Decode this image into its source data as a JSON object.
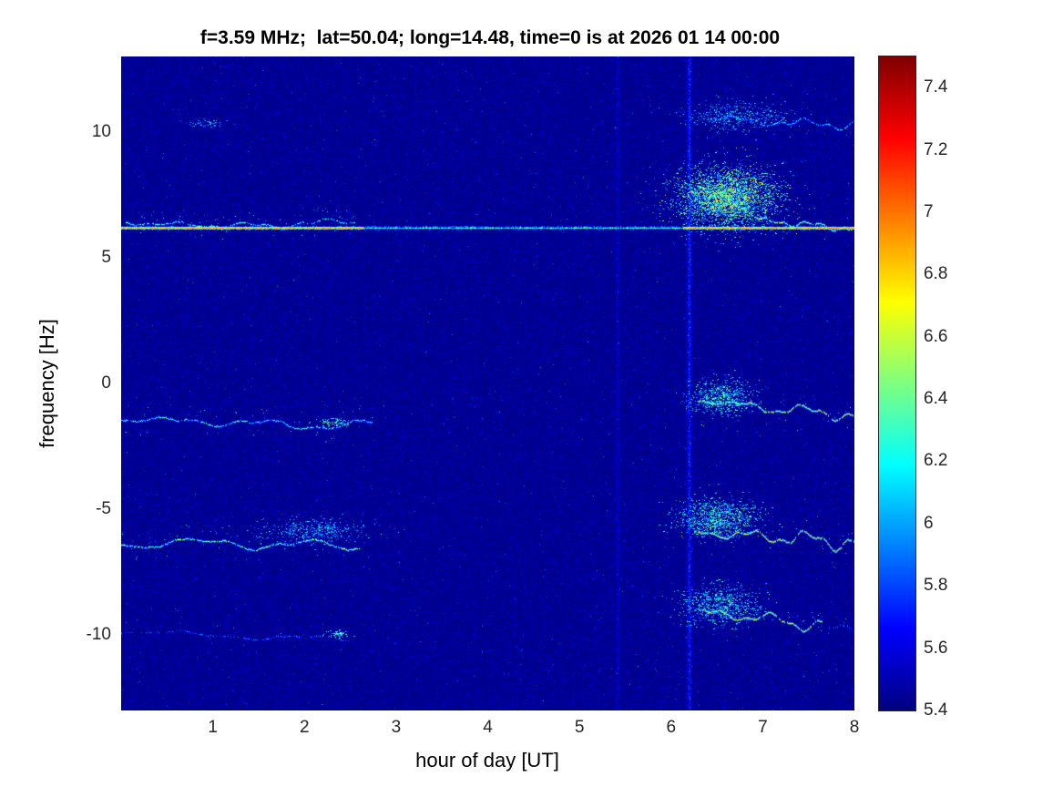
{
  "chart_data": {
    "type": "heatmap",
    "title": "f=3.59 MHz;  lat=50.04; long=14.48, time=0 is at 2026 01 14 00:00",
    "xlabel": "hour of day [UT]",
    "ylabel": "frequency [Hz]",
    "xlim": [
      0,
      8
    ],
    "ylim": [
      -13,
      13
    ],
    "x_ticks": [
      1,
      2,
      3,
      4,
      5,
      6,
      7,
      8
    ],
    "y_ticks": [
      -10,
      -5,
      0,
      5,
      10
    ],
    "grid": false,
    "legend": "none",
    "colorbar": {
      "position": "right",
      "colormap": "jet",
      "min": 5.4,
      "max": 7.5,
      "ticks": [
        5.4,
        5.6,
        5.8,
        6,
        6.2,
        6.4,
        6.6,
        6.8,
        7,
        7.2,
        7.4
      ]
    },
    "noise": {
      "base": 5.4,
      "scale": 0.045,
      "speckle_p": 0.0035,
      "speckle_amp": 0.5
    },
    "vertical_bands": [
      {
        "hour": 6.2,
        "width": 0.022,
        "strength": 0.45
      },
      {
        "hour": 5.42,
        "width": 0.018,
        "strength": 0.18
      }
    ],
    "carrier_line": {
      "frequency_hz": 6.2,
      "active_intervals_hours": [
        [
          0,
          2.65
        ],
        [
          6.13,
          8
        ]
      ],
      "value_active": [
        6.45,
        7.15
      ],
      "value_quiet": [
        6.0,
        6.5
      ]
    },
    "traces": [
      {
        "x0": 0.05,
        "x1": 2.55,
        "y0": 6.45,
        "y1": 6.5,
        "a0": 0.1,
        "a1": 0.18,
        "f": 1.2,
        "v": 6.15,
        "vr": 0.45,
        "d": 0.7,
        "halo": 0.3
      },
      {
        "x0": 0.0,
        "x1": 2.75,
        "y0": -1.45,
        "y1": -1.65,
        "a0": 0.12,
        "a1": 0.22,
        "f": 0.9,
        "v": 6.05,
        "vr": 0.55,
        "d": 0.85,
        "halo": 0.15
      },
      {
        "x0": 0.0,
        "x1": 2.6,
        "y0": -6.3,
        "y1": -6.5,
        "a0": 0.15,
        "a1": 0.25,
        "f": 0.8,
        "v": 6.2,
        "vr": 0.6,
        "d": 0.85,
        "halo": 0.2
      },
      {
        "x0": 0.0,
        "x1": 2.5,
        "y0": -9.9,
        "y1": -10.05,
        "a0": 0.08,
        "a1": 0.12,
        "f": 0.7,
        "v": 5.8,
        "vr": 0.35,
        "d": 0.45,
        "halo": 0.08
      },
      {
        "x0": 6.45,
        "x1": 8.0,
        "y0": 10.55,
        "y1": 10.45,
        "a0": 0.15,
        "a1": 0.25,
        "f": 1.4,
        "v": 5.95,
        "vr": 0.45,
        "d": 0.8,
        "halo": 0.15
      },
      {
        "x0": 6.28,
        "x1": 7.05,
        "y0": 7.9,
        "y1": 6.5,
        "a0": 0.1,
        "a1": 0.2,
        "f": 1.5,
        "v": 6.25,
        "vr": 0.5,
        "d": 0.8,
        "halo": 0.35
      },
      {
        "x0": 6.95,
        "x1": 8.0,
        "y0": 6.5,
        "y1": 6.35,
        "a0": 0.12,
        "a1": 0.2,
        "f": 1.8,
        "v": 6.35,
        "vr": 0.5,
        "d": 0.85,
        "halo": 0.15
      },
      {
        "x0": 6.3,
        "x1": 8.0,
        "y0": -0.65,
        "y1": -1.5,
        "a0": 0.1,
        "a1": 0.3,
        "f": 1.5,
        "v": 6.45,
        "vr": 0.6,
        "d": 0.9,
        "halo": 0.2
      },
      {
        "x0": 6.25,
        "x1": 8.0,
        "y0": -5.95,
        "y1": -6.3,
        "a0": 0.12,
        "a1": 0.45,
        "f": 1.6,
        "v": 6.55,
        "vr": 0.55,
        "d": 0.9,
        "halo": 0.25
      },
      {
        "x0": 6.3,
        "x1": 7.65,
        "y0": -9.05,
        "y1": -9.75,
        "a0": 0.12,
        "a1": 0.35,
        "f": 1.5,
        "v": 6.45,
        "vr": 0.55,
        "d": 0.85,
        "halo": 0.25
      },
      {
        "x0": 7.6,
        "x1": 8.0,
        "y0": -9.7,
        "y1": -9.8,
        "a0": 0.1,
        "a1": 0.15,
        "f": 1.5,
        "v": 5.85,
        "vr": 0.3,
        "d": 0.5,
        "halo": 0.05
      }
    ],
    "clouds": [
      {
        "x": 6.6,
        "y": 7.4,
        "sx": 0.28,
        "sy": 0.6,
        "n": 3500,
        "b": 5.85,
        "r": 1.0
      },
      {
        "x": 6.55,
        "y": -0.55,
        "sx": 0.18,
        "sy": 0.35,
        "n": 700,
        "b": 5.85,
        "r": 0.7
      },
      {
        "x": 6.5,
        "y": -5.35,
        "sx": 0.22,
        "sy": 0.4,
        "n": 1100,
        "b": 5.85,
        "r": 0.8
      },
      {
        "x": 6.55,
        "y": -8.8,
        "sx": 0.22,
        "sy": 0.4,
        "n": 800,
        "b": 5.85,
        "r": 0.7
      },
      {
        "x": 6.7,
        "y": 10.6,
        "sx": 0.3,
        "sy": 0.3,
        "n": 450,
        "b": 5.8,
        "r": 0.6
      },
      {
        "x": 2.1,
        "y": -5.85,
        "sx": 0.3,
        "sy": 0.25,
        "n": 450,
        "b": 5.8,
        "r": 0.6
      },
      {
        "x": 0.9,
        "y": 10.35,
        "sx": 0.12,
        "sy": 0.07,
        "n": 70,
        "b": 5.8,
        "r": 0.5
      },
      {
        "x": 2.35,
        "y": -9.95,
        "sx": 0.06,
        "sy": 0.07,
        "n": 60,
        "b": 6.05,
        "r": 0.5
      },
      {
        "x": 2.3,
        "y": -1.55,
        "sx": 0.08,
        "sy": 0.08,
        "n": 80,
        "b": 6.15,
        "r": 0.45
      }
    ]
  }
}
